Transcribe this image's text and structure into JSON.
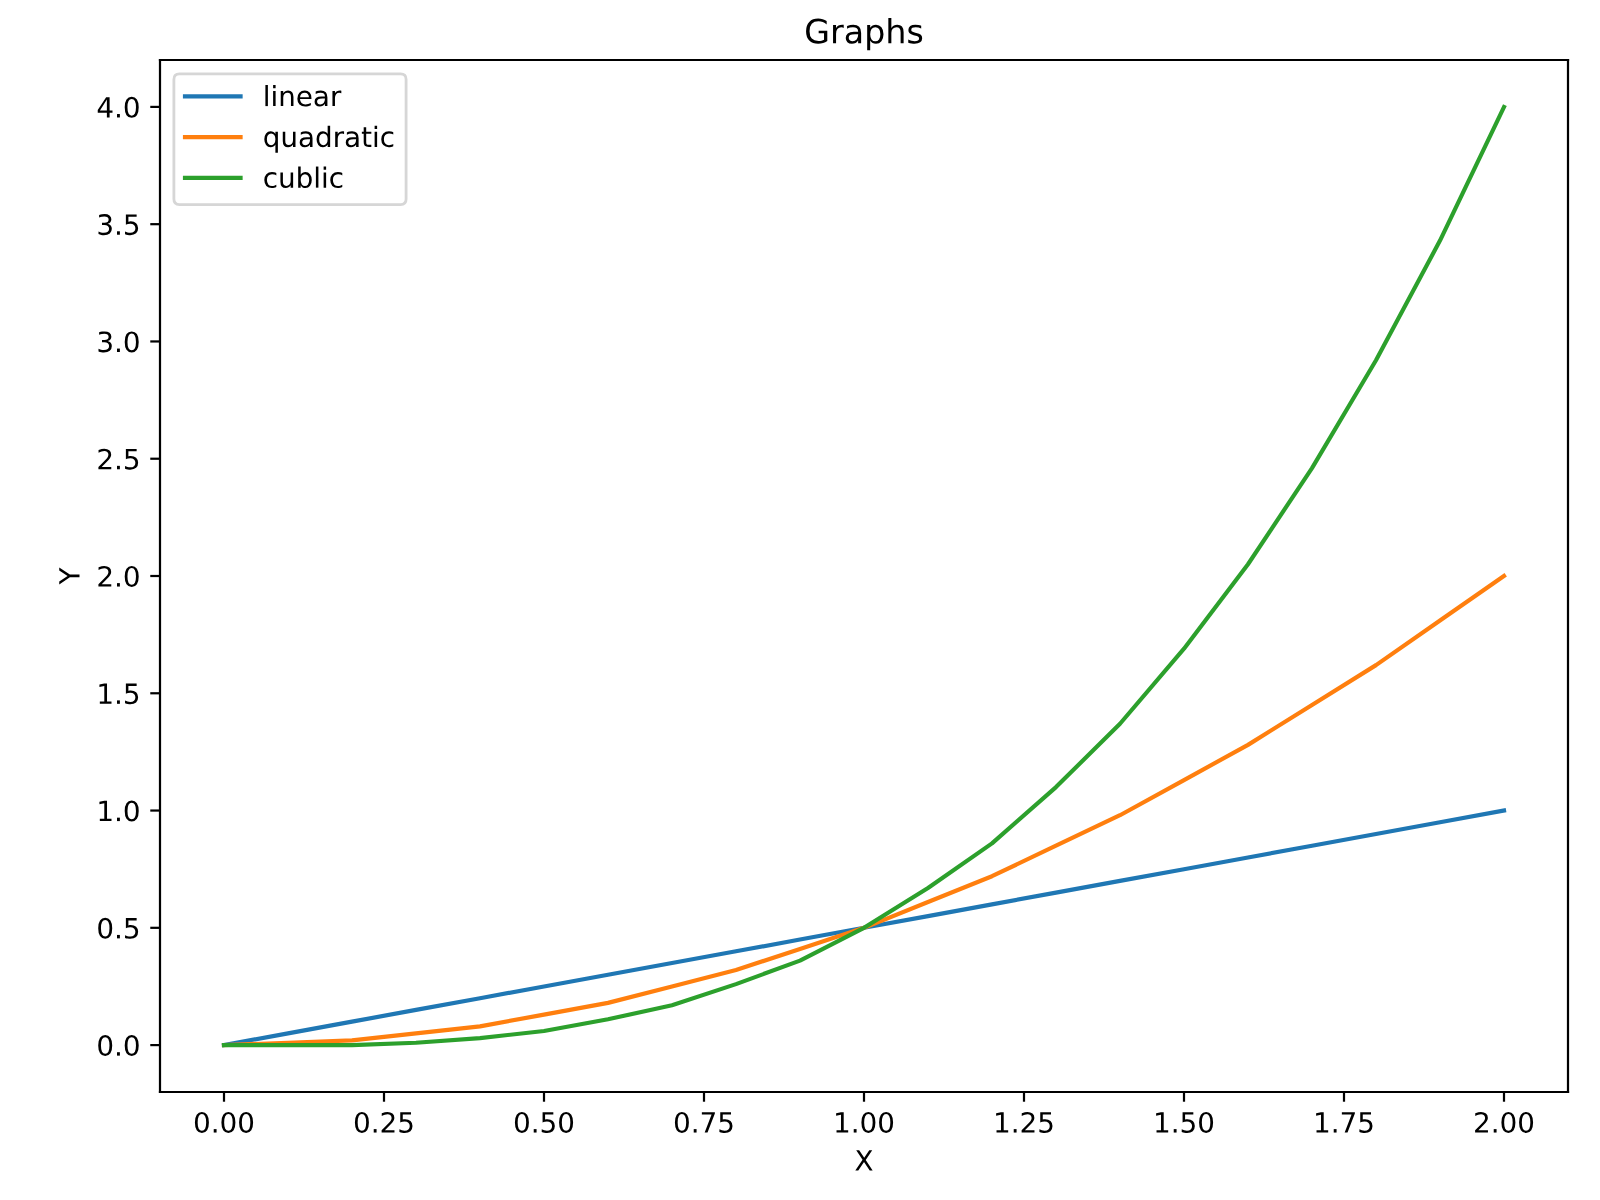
{
  "chart_data": {
    "type": "line",
    "title": "Graphs",
    "xlabel": "X",
    "ylabel": "Y",
    "x": [
      0,
      0.1,
      0.2,
      0.3,
      0.4,
      0.5,
      0.6,
      0.7,
      0.8,
      0.9,
      1.0,
      1.1,
      1.2,
      1.3,
      1.4,
      1.5,
      1.6,
      1.7,
      1.8,
      1.9,
      2.0
    ],
    "series": [
      {
        "name": "linear",
        "color": "#1f77b4",
        "values": [
          0,
          0.05,
          0.1,
          0.15,
          0.2,
          0.25,
          0.3,
          0.35,
          0.4,
          0.45,
          0.5,
          0.55,
          0.6,
          0.65,
          0.7,
          0.75,
          0.8,
          0.85,
          0.9,
          0.95,
          1.0
        ]
      },
      {
        "name": "quadratic",
        "color": "#ff7f0e",
        "values": [
          0,
          0.01,
          0.02,
          0.05,
          0.08,
          0.13,
          0.18,
          0.25,
          0.32,
          0.41,
          0.5,
          0.61,
          0.72,
          0.85,
          0.98,
          1.13,
          1.28,
          1.45,
          1.62,
          1.81,
          2.0
        ]
      },
      {
        "name": "cublic",
        "color": "#2ca02c",
        "values": [
          0,
          0,
          0,
          0.01,
          0.03,
          0.06,
          0.11,
          0.17,
          0.26,
          0.36,
          0.5,
          0.67,
          0.86,
          1.1,
          1.37,
          1.69,
          2.05,
          2.46,
          2.92,
          3.43,
          4.0
        ]
      }
    ],
    "xlim": [
      -0.1,
      2.1
    ],
    "ylim": [
      -0.2,
      4.2
    ],
    "xticks": [
      {
        "value": 0,
        "label": "0.00"
      },
      {
        "value": 0.25,
        "label": "0.25"
      },
      {
        "value": 0.5,
        "label": "0.50"
      },
      {
        "value": 0.75,
        "label": "0.75"
      },
      {
        "value": 1.0,
        "label": "1.00"
      },
      {
        "value": 1.25,
        "label": "1.25"
      },
      {
        "value": 1.5,
        "label": "1.50"
      },
      {
        "value": 1.75,
        "label": "1.75"
      },
      {
        "value": 2.0,
        "label": "2.00"
      }
    ],
    "yticks": [
      {
        "value": 0,
        "label": "0.0"
      },
      {
        "value": 0.5,
        "label": "0.5"
      },
      {
        "value": 1.0,
        "label": "1.0"
      },
      {
        "value": 1.5,
        "label": "1.5"
      },
      {
        "value": 2.0,
        "label": "2.0"
      },
      {
        "value": 2.5,
        "label": "2.5"
      },
      {
        "value": 3.0,
        "label": "3.0"
      },
      {
        "value": 3.5,
        "label": "3.5"
      },
      {
        "value": 4.0,
        "label": "4.0"
      }
    ],
    "grid": false,
    "legend": "top left",
    "marker": "none",
    "line_style": "solid"
  }
}
